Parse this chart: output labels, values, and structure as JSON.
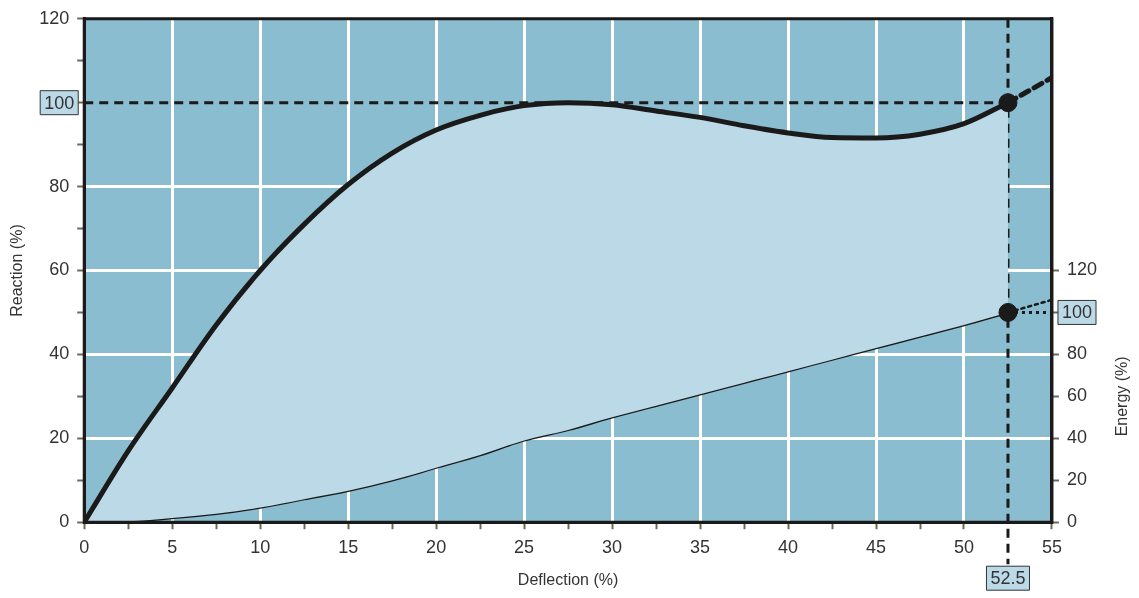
{
  "chart_data": {
    "type": "line",
    "xlabel": "Deflection (%)",
    "ylabel": "Reaction (%)",
    "y2label": "Energy (%)",
    "xlim": [
      0,
      55
    ],
    "ylim": [
      0,
      120
    ],
    "y2lim": [
      0,
      240
    ],
    "xticks": [
      0,
      {
        "value": 2.5,
        "label": null
      },
      5,
      {
        "value": 7.5,
        "label": null
      },
      10,
      {
        "value": 12.5,
        "label": null
      },
      15,
      {
        "value": 17.5,
        "label": null
      },
      20,
      {
        "value": 22.5,
        "label": null
      },
      25,
      {
        "value": 27.5,
        "label": null
      },
      30,
      {
        "value": 32.5,
        "label": null
      },
      35,
      {
        "value": 37.5,
        "label": null
      },
      40,
      {
        "value": 42.5,
        "label": null
      },
      45,
      {
        "value": 47.5,
        "label": null
      },
      50,
      55
    ],
    "yticks": [
      0,
      {
        "value": 10,
        "label": null
      },
      20,
      {
        "value": 30,
        "label": null
      },
      40,
      {
        "value": 50,
        "label": null
      },
      60,
      {
        "value": 70,
        "label": null
      },
      80,
      {
        "value": 90,
        "label": null
      },
      {
        "value": 100,
        "label": null
      },
      {
        "value": 110,
        "label": null
      },
      120
    ],
    "y2ticks": [
      0,
      20,
      40,
      60,
      80,
      {
        "value": 100,
        "label": null
      },
      120
    ],
    "grid": true,
    "legend": false,
    "marker": "none",
    "series": [
      {
        "color": "#1a1a1a",
        "line_style": "solid",
        "x": [
          0,
          2.5,
          5,
          7.5,
          10,
          12.5,
          15,
          17.5,
          20,
          22.5,
          25,
          27.5,
          30,
          32.5,
          35,
          37.5,
          40,
          42.5,
          45,
          47.5,
          50,
          52.5
        ],
        "values": [
          0,
          17,
          32,
          47,
          60,
          71,
          80.5,
          88,
          93.5,
          97,
          99.3,
          100,
          99.5,
          98,
          96.5,
          94.5,
          92.8,
          91.7,
          91.6,
          92.5,
          95,
          100
        ]
      },
      {
        "color": "#1a1a1a",
        "line_style": "dashed",
        "x": [
          52.5,
          55
        ],
        "values": [
          100,
          106
        ]
      },
      {
        "color": "#1a1a1a",
        "line_style": "solid",
        "axis": "y2",
        "x": [
          0,
          2.5,
          5,
          7.5,
          10,
          12.5,
          15,
          17.5,
          20,
          22.5,
          25,
          27.5,
          30,
          32.5,
          35,
          37.5,
          40,
          42.5,
          45,
          47.5,
          50,
          52.5
        ],
        "values": [
          0,
          0.4,
          2,
          4,
          7,
          11,
          15,
          20,
          26,
          32,
          39,
          44,
          50,
          55.5,
          61,
          66.5,
          72,
          77.5,
          83,
          88.5,
          94,
          100
        ]
      },
      {
        "color": "#1a1a1a",
        "line_style": "dotted",
        "axis": "y2",
        "x": [
          52.5,
          55
        ],
        "values": [
          100,
          106
        ]
      },
      {
        "type": "scatter",
        "color": "#1a1a1a",
        "marker": "circle",
        "x": [
          52.5
        ],
        "values": [
          100
        ]
      },
      {
        "type": "scatter",
        "color": "#1a1a1a",
        "marker": "circle",
        "axis": "y2",
        "x": [
          52.5
        ],
        "values": [
          100
        ]
      }
    ],
    "ref_lines": [
      {
        "axis": "y",
        "value": 100,
        "label": "100",
        "line_style": "dashed",
        "color": "#1a1a1a"
      },
      {
        "axis": "x",
        "value": 52.5,
        "label": "52.5",
        "line_style": "dashed",
        "color": "#1a1a1a"
      },
      {
        "axis": "y2",
        "value": 100,
        "label": "100",
        "line_style": "dotted",
        "color": "#1a1a1a"
      }
    ]
  }
}
